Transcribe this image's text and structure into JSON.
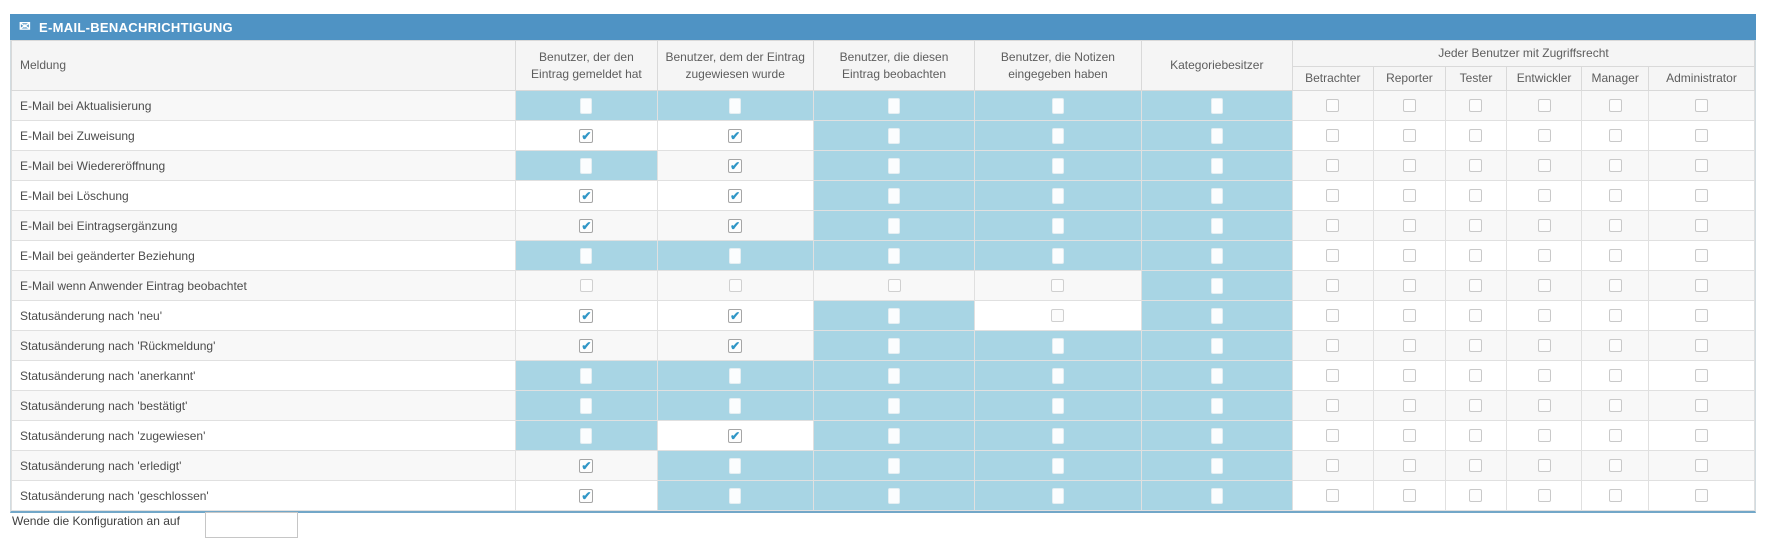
{
  "title": {
    "text": "E-MAIL-BENACHRICHTIGUNG",
    "icon": "envelope-icon"
  },
  "colors": {
    "titlebar_blue": "#4f93c4",
    "highlight_blue": "#a8d5e4",
    "header_gray": "#f5f5f5",
    "alt_row_gray": "#f8f8f8",
    "check_blue": "#2f96c6",
    "table_bottom_border": "#72a7c8"
  },
  "table": {
    "message_header": "Meldung",
    "columns": [
      "Benutzer, der den Eintrag gemeldet hat",
      "Benutzer, dem der Eintrag zugewiesen wurde",
      "Benutzer, die diesen Eintrag beobachten",
      "Benutzer, die Notizen eingegeben haben",
      "Kategoriebesitzer"
    ],
    "access_group_header": "Jeder Benutzer mit Zugriffsrecht",
    "access_columns": [
      "Betrachter",
      "Reporter",
      "Tester",
      "Entwickler",
      "Manager",
      "Administrator"
    ],
    "state_legend": {
      "checked": "checkbox ticked (blue check on white)",
      "highlighted": "light-blue cell with empty white checkbox",
      "unchecked": "faint empty checkbox on normal row background"
    },
    "rows": [
      {
        "label": "E-Mail bei Aktualisierung",
        "cells": [
          "highlighted",
          "highlighted",
          "highlighted",
          "highlighted",
          "highlighted"
        ],
        "access": [
          "unchecked",
          "unchecked",
          "unchecked",
          "unchecked",
          "unchecked",
          "unchecked"
        ]
      },
      {
        "label": "E-Mail bei Zuweisung",
        "cells": [
          "checked",
          "checked",
          "highlighted",
          "highlighted",
          "highlighted"
        ],
        "access": [
          "unchecked",
          "unchecked",
          "unchecked",
          "unchecked",
          "unchecked",
          "unchecked"
        ]
      },
      {
        "label": "E-Mail bei Wiedereröffnung",
        "cells": [
          "highlighted",
          "checked",
          "highlighted",
          "highlighted",
          "highlighted"
        ],
        "access": [
          "unchecked",
          "unchecked",
          "unchecked",
          "unchecked",
          "unchecked",
          "unchecked"
        ]
      },
      {
        "label": "E-Mail bei Löschung",
        "cells": [
          "checked",
          "checked",
          "highlighted",
          "highlighted",
          "highlighted"
        ],
        "access": [
          "unchecked",
          "unchecked",
          "unchecked",
          "unchecked",
          "unchecked",
          "unchecked"
        ]
      },
      {
        "label": "E-Mail bei Eintragsergänzung",
        "cells": [
          "checked",
          "checked",
          "highlighted",
          "highlighted",
          "highlighted"
        ],
        "access": [
          "unchecked",
          "unchecked",
          "unchecked",
          "unchecked",
          "unchecked",
          "unchecked"
        ]
      },
      {
        "label": "E-Mail bei geänderter Beziehung",
        "cells": [
          "highlighted",
          "highlighted",
          "highlighted",
          "highlighted",
          "highlighted"
        ],
        "access": [
          "unchecked",
          "unchecked",
          "unchecked",
          "unchecked",
          "unchecked",
          "unchecked"
        ]
      },
      {
        "label": "E-Mail wenn Anwender Eintrag beobachtet",
        "cells": [
          "unchecked",
          "unchecked",
          "unchecked",
          "unchecked",
          "highlighted"
        ],
        "access": [
          "unchecked",
          "unchecked",
          "unchecked",
          "unchecked",
          "unchecked",
          "unchecked"
        ]
      },
      {
        "label": "Statusänderung nach 'neu'",
        "cells": [
          "checked",
          "checked",
          "highlighted",
          "unchecked",
          "highlighted"
        ],
        "access": [
          "unchecked",
          "unchecked",
          "unchecked",
          "unchecked",
          "unchecked",
          "unchecked"
        ]
      },
      {
        "label": "Statusänderung nach 'Rückmeldung'",
        "cells": [
          "checked",
          "checked",
          "highlighted",
          "highlighted",
          "highlighted"
        ],
        "access": [
          "unchecked",
          "unchecked",
          "unchecked",
          "unchecked",
          "unchecked",
          "unchecked"
        ]
      },
      {
        "label": "Statusänderung nach 'anerkannt'",
        "cells": [
          "highlighted",
          "highlighted",
          "highlighted",
          "highlighted",
          "highlighted"
        ],
        "access": [
          "unchecked",
          "unchecked",
          "unchecked",
          "unchecked",
          "unchecked",
          "unchecked"
        ]
      },
      {
        "label": "Statusänderung nach 'bestätigt'",
        "cells": [
          "highlighted",
          "highlighted",
          "highlighted",
          "highlighted",
          "highlighted"
        ],
        "access": [
          "unchecked",
          "unchecked",
          "unchecked",
          "unchecked",
          "unchecked",
          "unchecked"
        ]
      },
      {
        "label": "Statusänderung nach 'zugewiesen'",
        "cells": [
          "highlighted",
          "checked",
          "highlighted",
          "highlighted",
          "highlighted"
        ],
        "access": [
          "unchecked",
          "unchecked",
          "unchecked",
          "unchecked",
          "unchecked",
          "unchecked"
        ]
      },
      {
        "label": "Statusänderung nach 'erledigt'",
        "cells": [
          "checked",
          "highlighted",
          "highlighted",
          "highlighted",
          "highlighted"
        ],
        "access": [
          "unchecked",
          "unchecked",
          "unchecked",
          "unchecked",
          "unchecked",
          "unchecked"
        ]
      },
      {
        "label": "Statusänderung nach 'geschlossen'",
        "cells": [
          "checked",
          "highlighted",
          "highlighted",
          "highlighted",
          "highlighted"
        ],
        "access": [
          "unchecked",
          "unchecked",
          "unchecked",
          "unchecked",
          "unchecked",
          "unchecked"
        ]
      }
    ]
  },
  "footer": {
    "label": "Wende die Konfiguration an auf",
    "input_value": ""
  }
}
